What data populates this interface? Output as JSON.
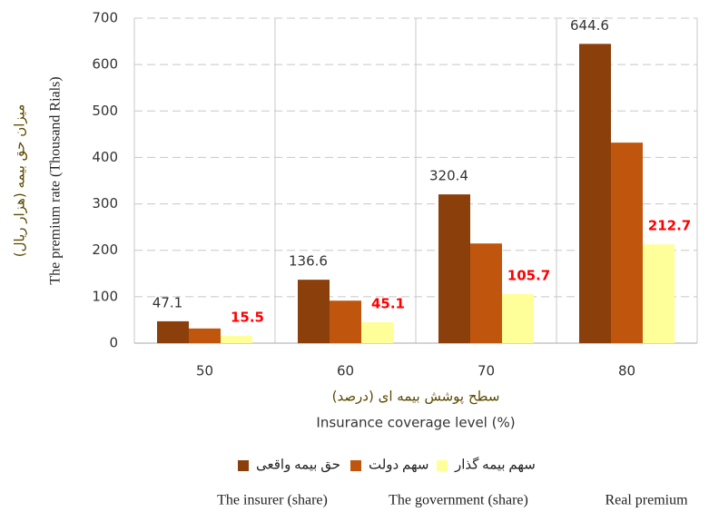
{
  "chart_data": {
    "type": "bar",
    "y_title": "میزان حق بیمه (هزار ریال)",
    "y_title_en": "The premium rate (Thousand Rials)",
    "x_title": "سطح پوشش بیمه ای (درصد)",
    "x_title_en": "Insurance coverage level (%)",
    "categories": [
      "50",
      "60",
      "70",
      "80"
    ],
    "series": [
      {
        "name": "حق بیمه واقعی",
        "color": "#8b3f0b",
        "values": [
          47.1,
          136.6,
          320.4,
          644.6
        ],
        "label_color": "#333333"
      },
      {
        "name": "سهم دولت",
        "color": "#c0560e",
        "values": [
          31.6,
          91.5,
          214.7,
          431.9
        ]
      },
      {
        "name": "سهم بیمه گذار",
        "color": "#ffff99",
        "values": [
          15.5,
          45.1,
          105.7,
          212.7
        ],
        "label_color": "#ff0000"
      }
    ],
    "legend_en": [
      "The insurer (share)",
      "The government (share)",
      "Real premium"
    ],
    "ylim": [
      0,
      700
    ],
    "yticks": [
      0,
      100,
      200,
      300,
      400,
      500,
      600,
      700
    ],
    "grid": true
  }
}
